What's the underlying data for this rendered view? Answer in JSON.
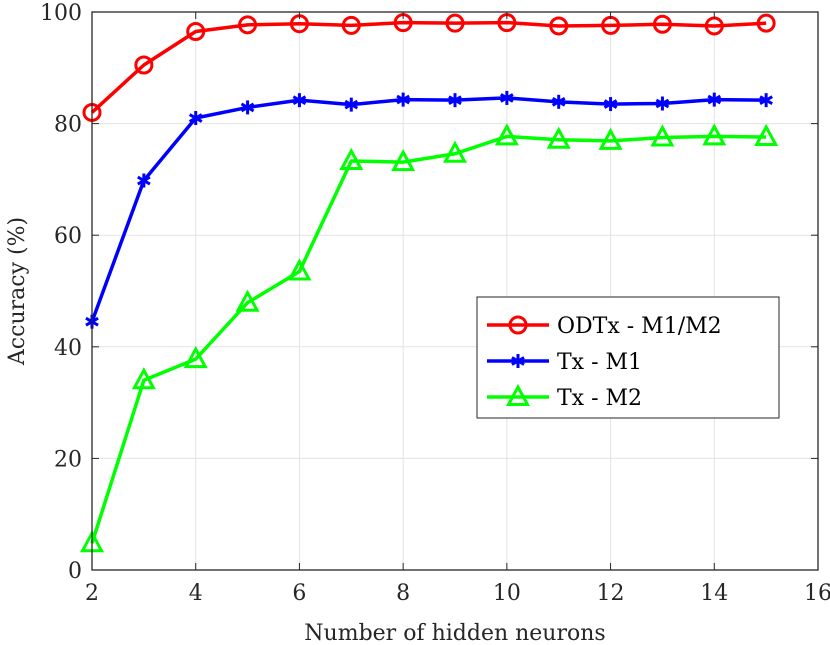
{
  "chart_data": {
    "type": "line",
    "title": "",
    "xlabel": "Number of hidden neurons",
    "ylabel": "Accuracy (%)",
    "xlim": [
      2,
      16
    ],
    "ylim": [
      0,
      100
    ],
    "xticks": [
      2,
      4,
      6,
      8,
      10,
      12,
      14,
      16
    ],
    "yticks": [
      0,
      20,
      40,
      60,
      80,
      100
    ],
    "grid": true,
    "legend_position": "center-right",
    "x": [
      2,
      3,
      4,
      5,
      6,
      7,
      8,
      9,
      10,
      11,
      12,
      13,
      14,
      15
    ],
    "series": [
      {
        "name": "ODTx - M1/M2",
        "color": "#ff0000",
        "marker": "circle",
        "values": [
          82.0,
          90.5,
          96.5,
          97.7,
          97.9,
          97.6,
          98.1,
          98.0,
          98.1,
          97.5,
          97.6,
          97.8,
          97.5,
          98.0
        ]
      },
      {
        "name": "Tx - M1",
        "color": "#0000ff",
        "marker": "asterisk",
        "values": [
          44.5,
          69.8,
          81.0,
          82.9,
          84.2,
          83.4,
          84.3,
          84.2,
          84.6,
          83.9,
          83.5,
          83.6,
          84.3,
          84.2
        ]
      },
      {
        "name": "Tx - M2",
        "color": "#00ff00",
        "marker": "triangle",
        "values": [
          4.8,
          34.0,
          37.8,
          47.9,
          53.5,
          73.3,
          73.1,
          74.6,
          77.7,
          77.1,
          76.9,
          77.5,
          77.7,
          77.6
        ]
      }
    ]
  }
}
